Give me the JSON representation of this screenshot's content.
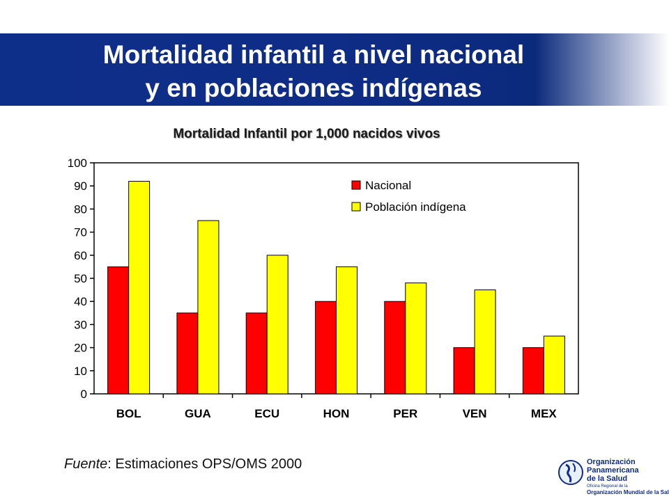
{
  "slide": {
    "title_line1": "Mortalidad infantil a nivel nacional",
    "title_line2": "y en poblaciones indígenas",
    "source_label": "Fuente",
    "source_text": ": Estimaciones OPS/OMS 2000"
  },
  "logo": {
    "line1": "Organización",
    "line2": "Panamericana",
    "line3": "de la Salud",
    "sub_line1": "Oficina Regional de la",
    "sub_line2": "Organización Mundial de la Salud"
  },
  "chart_data": {
    "type": "bar",
    "title": "Mortalidad Infantil por 1,000 nacidos vivos",
    "categories": [
      "BOL",
      "GUA",
      "ECU",
      "HON",
      "PER",
      "VEN",
      "MEX"
    ],
    "series": [
      {
        "name": "Nacional",
        "color": "#ff0000",
        "values": [
          55,
          35,
          35,
          40,
          40,
          20,
          20
        ]
      },
      {
        "name": "Población indígena",
        "color": "#ffff00",
        "values": [
          92,
          75,
          60,
          55,
          48,
          45,
          25
        ]
      }
    ],
    "ylim": [
      0,
      100
    ],
    "yticks": [
      0,
      10,
      20,
      30,
      40,
      50,
      60,
      70,
      80,
      90,
      100
    ],
    "grid": false,
    "legend": "top-right"
  }
}
